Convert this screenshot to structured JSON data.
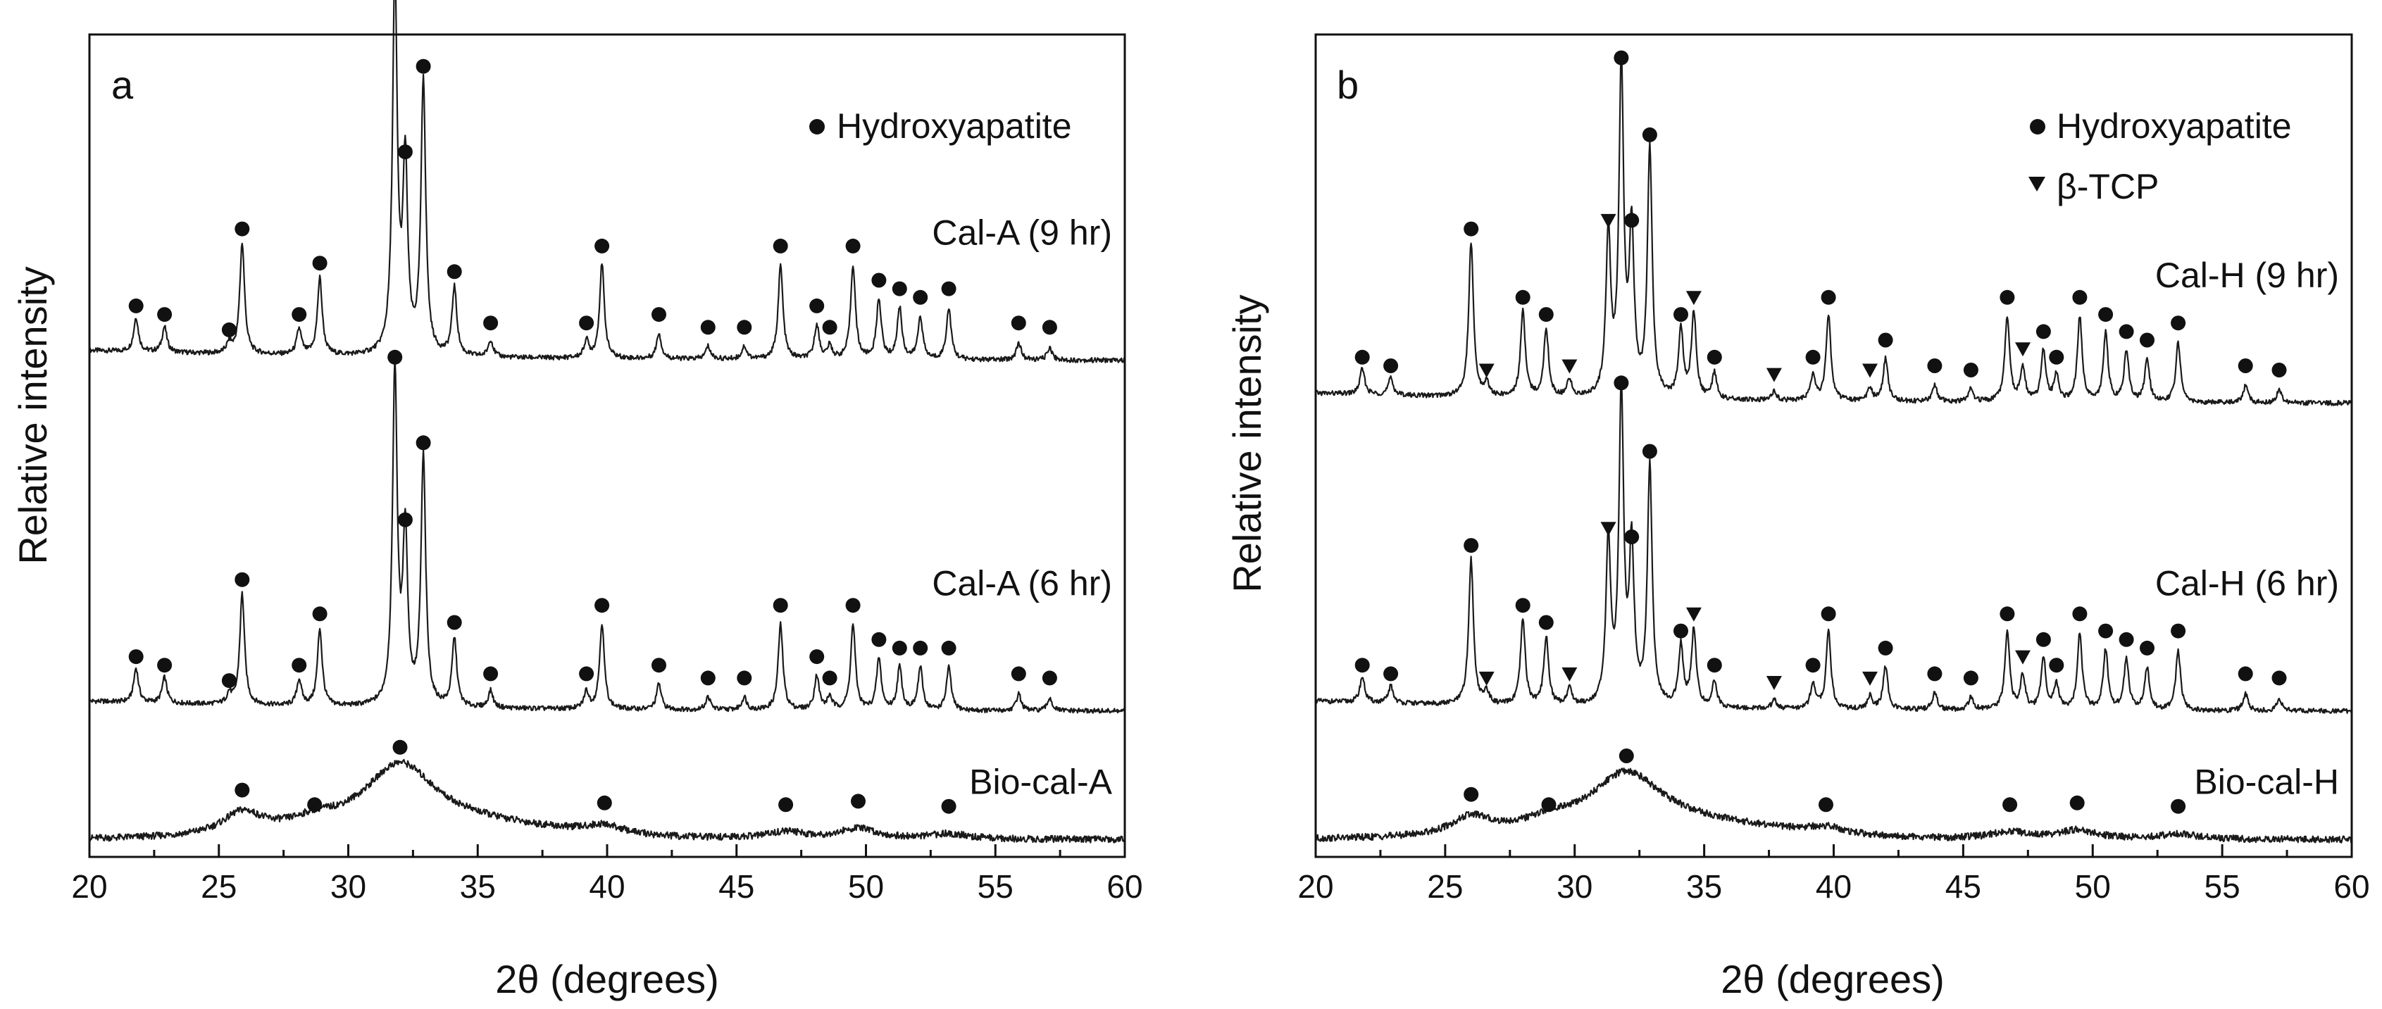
{
  "chart_data": [
    {
      "type": "line",
      "panel": "a",
      "xlabel": "2θ (degrees)",
      "ylabel": "Relative intensity",
      "xlim": [
        20,
        60
      ],
      "x_ticks": [
        20,
        25,
        30,
        35,
        40,
        45,
        50,
        55,
        60
      ],
      "legend": [
        {
          "symbol": "circle",
          "label": "Hydroxyapatite"
        }
      ],
      "series": [
        {
          "name": "Cal-A (9 hr)",
          "baseline": 0.58,
          "peaks": [
            {
              "x": 21.8,
              "h": 0.04,
              "phase": "HA"
            },
            {
              "x": 22.9,
              "h": 0.03,
              "phase": "HA"
            },
            {
              "x": 25.4,
              "h": 0.012,
              "phase": "HA"
            },
            {
              "x": 25.9,
              "h": 0.13,
              "phase": "HA"
            },
            {
              "x": 28.1,
              "h": 0.03,
              "phase": "HA"
            },
            {
              "x": 28.9,
              "h": 0.09,
              "phase": "HA"
            },
            {
              "x": 31.8,
              "h": 0.44,
              "phase": "HA"
            },
            {
              "x": 32.2,
              "h": 0.22,
              "phase": "HA"
            },
            {
              "x": 32.9,
              "h": 0.32,
              "phase": "HA"
            },
            {
              "x": 34.1,
              "h": 0.08,
              "phase": "HA"
            },
            {
              "x": 35.5,
              "h": 0.02,
              "phase": "HA"
            },
            {
              "x": 39.2,
              "h": 0.02,
              "phase": "HA"
            },
            {
              "x": 39.8,
              "h": 0.11,
              "phase": "HA"
            },
            {
              "x": 42.0,
              "h": 0.03,
              "phase": "HA"
            },
            {
              "x": 43.9,
              "h": 0.015,
              "phase": "HA"
            },
            {
              "x": 45.3,
              "h": 0.015,
              "phase": "HA"
            },
            {
              "x": 46.7,
              "h": 0.11,
              "phase": "HA"
            },
            {
              "x": 48.1,
              "h": 0.04,
              "phase": "HA"
            },
            {
              "x": 48.6,
              "h": 0.015,
              "phase": "HA"
            },
            {
              "x": 49.5,
              "h": 0.11,
              "phase": "HA"
            },
            {
              "x": 50.5,
              "h": 0.07,
              "phase": "HA"
            },
            {
              "x": 51.3,
              "h": 0.06,
              "phase": "HA"
            },
            {
              "x": 52.1,
              "h": 0.05,
              "phase": "HA"
            },
            {
              "x": 53.2,
              "h": 0.06,
              "phase": "HA"
            },
            {
              "x": 55.9,
              "h": 0.02,
              "phase": "HA"
            },
            {
              "x": 57.1,
              "h": 0.015,
              "phase": "HA"
            }
          ]
        },
        {
          "name": "Cal-A (6 hr)",
          "baseline": 0.17,
          "peaks": [
            {
              "x": 21.8,
              "h": 0.04,
              "phase": "HA"
            },
            {
              "x": 22.9,
              "h": 0.03,
              "phase": "HA"
            },
            {
              "x": 25.4,
              "h": 0.012,
              "phase": "HA"
            },
            {
              "x": 25.9,
              "h": 0.13,
              "phase": "HA"
            },
            {
              "x": 28.1,
              "h": 0.03,
              "phase": "HA"
            },
            {
              "x": 28.9,
              "h": 0.09,
              "phase": "HA"
            },
            {
              "x": 31.8,
              "h": 0.39,
              "phase": "HA"
            },
            {
              "x": 32.2,
              "h": 0.2,
              "phase": "HA"
            },
            {
              "x": 32.9,
              "h": 0.29,
              "phase": "HA"
            },
            {
              "x": 34.1,
              "h": 0.08,
              "phase": "HA"
            },
            {
              "x": 35.5,
              "h": 0.02,
              "phase": "HA"
            },
            {
              "x": 39.2,
              "h": 0.02,
              "phase": "HA"
            },
            {
              "x": 39.8,
              "h": 0.1,
              "phase": "HA"
            },
            {
              "x": 42.0,
              "h": 0.03,
              "phase": "HA"
            },
            {
              "x": 43.9,
              "h": 0.015,
              "phase": "HA"
            },
            {
              "x": 45.3,
              "h": 0.015,
              "phase": "HA"
            },
            {
              "x": 46.7,
              "h": 0.1,
              "phase": "HA"
            },
            {
              "x": 48.1,
              "h": 0.04,
              "phase": "HA"
            },
            {
              "x": 48.6,
              "h": 0.015,
              "phase": "HA"
            },
            {
              "x": 49.5,
              "h": 0.1,
              "phase": "HA"
            },
            {
              "x": 50.5,
              "h": 0.06,
              "phase": "HA"
            },
            {
              "x": 51.3,
              "h": 0.05,
              "phase": "HA"
            },
            {
              "x": 52.1,
              "h": 0.05,
              "phase": "HA"
            },
            {
              "x": 53.2,
              "h": 0.05,
              "phase": "HA"
            },
            {
              "x": 55.9,
              "h": 0.02,
              "phase": "HA"
            },
            {
              "x": 57.1,
              "h": 0.015,
              "phase": "HA"
            }
          ]
        },
        {
          "name": "Bio-cal-A",
          "baseline": 0.02,
          "broad": true,
          "peaks": [
            {
              "x": 25.9,
              "h": 0.025,
              "phase": "HA"
            },
            {
              "x": 28.7,
              "h": 0.008,
              "phase": "HA"
            },
            {
              "x": 32.0,
              "h": 0.07,
              "phase": "HA"
            },
            {
              "x": 39.9,
              "h": 0.01,
              "phase": "HA"
            },
            {
              "x": 46.9,
              "h": 0.008,
              "phase": "HA"
            },
            {
              "x": 49.7,
              "h": 0.012,
              "phase": "HA"
            },
            {
              "x": 53.2,
              "h": 0.006,
              "phase": "HA"
            }
          ]
        }
      ]
    },
    {
      "type": "line",
      "panel": "b",
      "xlabel": "2θ (degrees)",
      "ylabel": "Relative intensity",
      "xlim": [
        20,
        60
      ],
      "x_ticks": [
        20,
        25,
        30,
        35,
        40,
        45,
        50,
        55,
        60
      ],
      "legend": [
        {
          "symbol": "circle",
          "label": "Hydroxyapatite"
        },
        {
          "symbol": "triangle-down",
          "label": "β-TCP"
        }
      ],
      "series": [
        {
          "name": "Cal-H (9 hr)",
          "baseline": 0.53,
          "peaks": [
            {
              "x": 21.8,
              "h": 0.03,
              "phase": "HA"
            },
            {
              "x": 22.9,
              "h": 0.02,
              "phase": "HA"
            },
            {
              "x": 26.0,
              "h": 0.18,
              "phase": "HA"
            },
            {
              "x": 26.6,
              "h": 0.015,
              "phase": "TCP"
            },
            {
              "x": 28.0,
              "h": 0.1,
              "phase": "HA"
            },
            {
              "x": 28.9,
              "h": 0.08,
              "phase": "HA"
            },
            {
              "x": 29.8,
              "h": 0.02,
              "phase": "TCP"
            },
            {
              "x": 31.3,
              "h": 0.19,
              "phase": "TCP"
            },
            {
              "x": 31.8,
              "h": 0.38,
              "phase": "HA"
            },
            {
              "x": 32.2,
              "h": 0.19,
              "phase": "HA"
            },
            {
              "x": 32.9,
              "h": 0.29,
              "phase": "HA"
            },
            {
              "x": 34.1,
              "h": 0.08,
              "phase": "HA"
            },
            {
              "x": 34.6,
              "h": 0.1,
              "phase": "TCP"
            },
            {
              "x": 35.4,
              "h": 0.03,
              "phase": "HA"
            },
            {
              "x": 37.7,
              "h": 0.01,
              "phase": "TCP"
            },
            {
              "x": 39.2,
              "h": 0.03,
              "phase": "HA"
            },
            {
              "x": 39.8,
              "h": 0.1,
              "phase": "HA"
            },
            {
              "x": 41.4,
              "h": 0.015,
              "phase": "TCP"
            },
            {
              "x": 42.0,
              "h": 0.05,
              "phase": "HA"
            },
            {
              "x": 43.9,
              "h": 0.02,
              "phase": "HA"
            },
            {
              "x": 45.3,
              "h": 0.015,
              "phase": "HA"
            },
            {
              "x": 46.7,
              "h": 0.1,
              "phase": "HA"
            },
            {
              "x": 47.3,
              "h": 0.04,
              "phase": "TCP"
            },
            {
              "x": 48.1,
              "h": 0.06,
              "phase": "HA"
            },
            {
              "x": 48.6,
              "h": 0.03,
              "phase": "HA"
            },
            {
              "x": 49.5,
              "h": 0.1,
              "phase": "HA"
            },
            {
              "x": 50.5,
              "h": 0.08,
              "phase": "HA"
            },
            {
              "x": 51.3,
              "h": 0.06,
              "phase": "HA"
            },
            {
              "x": 52.1,
              "h": 0.05,
              "phase": "HA"
            },
            {
              "x": 53.3,
              "h": 0.07,
              "phase": "HA"
            },
            {
              "x": 55.9,
              "h": 0.02,
              "phase": "HA"
            },
            {
              "x": 57.2,
              "h": 0.015,
              "phase": "HA"
            }
          ]
        },
        {
          "name": "Cal-H (6 hr)",
          "baseline": 0.17,
          "peaks": [
            {
              "x": 21.8,
              "h": 0.03,
              "phase": "HA"
            },
            {
              "x": 22.9,
              "h": 0.02,
              "phase": "HA"
            },
            {
              "x": 26.0,
              "h": 0.17,
              "phase": "HA"
            },
            {
              "x": 26.6,
              "h": 0.015,
              "phase": "TCP"
            },
            {
              "x": 28.0,
              "h": 0.1,
              "phase": "HA"
            },
            {
              "x": 28.9,
              "h": 0.08,
              "phase": "HA"
            },
            {
              "x": 29.8,
              "h": 0.02,
              "phase": "TCP"
            },
            {
              "x": 31.3,
              "h": 0.19,
              "phase": "TCP"
            },
            {
              "x": 31.8,
              "h": 0.36,
              "phase": "HA"
            },
            {
              "x": 32.2,
              "h": 0.18,
              "phase": "HA"
            },
            {
              "x": 32.9,
              "h": 0.28,
              "phase": "HA"
            },
            {
              "x": 34.1,
              "h": 0.07,
              "phase": "HA"
            },
            {
              "x": 34.6,
              "h": 0.09,
              "phase": "TCP"
            },
            {
              "x": 35.4,
              "h": 0.03,
              "phase": "HA"
            },
            {
              "x": 37.7,
              "h": 0.01,
              "phase": "TCP"
            },
            {
              "x": 39.2,
              "h": 0.03,
              "phase": "HA"
            },
            {
              "x": 39.8,
              "h": 0.09,
              "phase": "HA"
            },
            {
              "x": 41.4,
              "h": 0.015,
              "phase": "TCP"
            },
            {
              "x": 42.0,
              "h": 0.05,
              "phase": "HA"
            },
            {
              "x": 43.9,
              "h": 0.02,
              "phase": "HA"
            },
            {
              "x": 45.3,
              "h": 0.015,
              "phase": "HA"
            },
            {
              "x": 46.7,
              "h": 0.09,
              "phase": "HA"
            },
            {
              "x": 47.3,
              "h": 0.04,
              "phase": "TCP"
            },
            {
              "x": 48.1,
              "h": 0.06,
              "phase": "HA"
            },
            {
              "x": 48.6,
              "h": 0.03,
              "phase": "HA"
            },
            {
              "x": 49.5,
              "h": 0.09,
              "phase": "HA"
            },
            {
              "x": 50.5,
              "h": 0.07,
              "phase": "HA"
            },
            {
              "x": 51.3,
              "h": 0.06,
              "phase": "HA"
            },
            {
              "x": 52.1,
              "h": 0.05,
              "phase": "HA"
            },
            {
              "x": 53.3,
              "h": 0.07,
              "phase": "HA"
            },
            {
              "x": 55.9,
              "h": 0.02,
              "phase": "HA"
            },
            {
              "x": 57.2,
              "h": 0.015,
              "phase": "HA"
            }
          ]
        },
        {
          "name": "Bio-cal-H",
          "baseline": 0.02,
          "broad": true,
          "peaks": [
            {
              "x": 26.0,
              "h": 0.02,
              "phase": "HA"
            },
            {
              "x": 29.0,
              "h": 0.008,
              "phase": "HA"
            },
            {
              "x": 32.0,
              "h": 0.06,
              "phase": "HA"
            },
            {
              "x": 39.7,
              "h": 0.008,
              "phase": "HA"
            },
            {
              "x": 46.8,
              "h": 0.008,
              "phase": "HA"
            },
            {
              "x": 49.4,
              "h": 0.01,
              "phase": "HA"
            },
            {
              "x": 53.3,
              "h": 0.006,
              "phase": "HA"
            }
          ]
        }
      ]
    }
  ]
}
